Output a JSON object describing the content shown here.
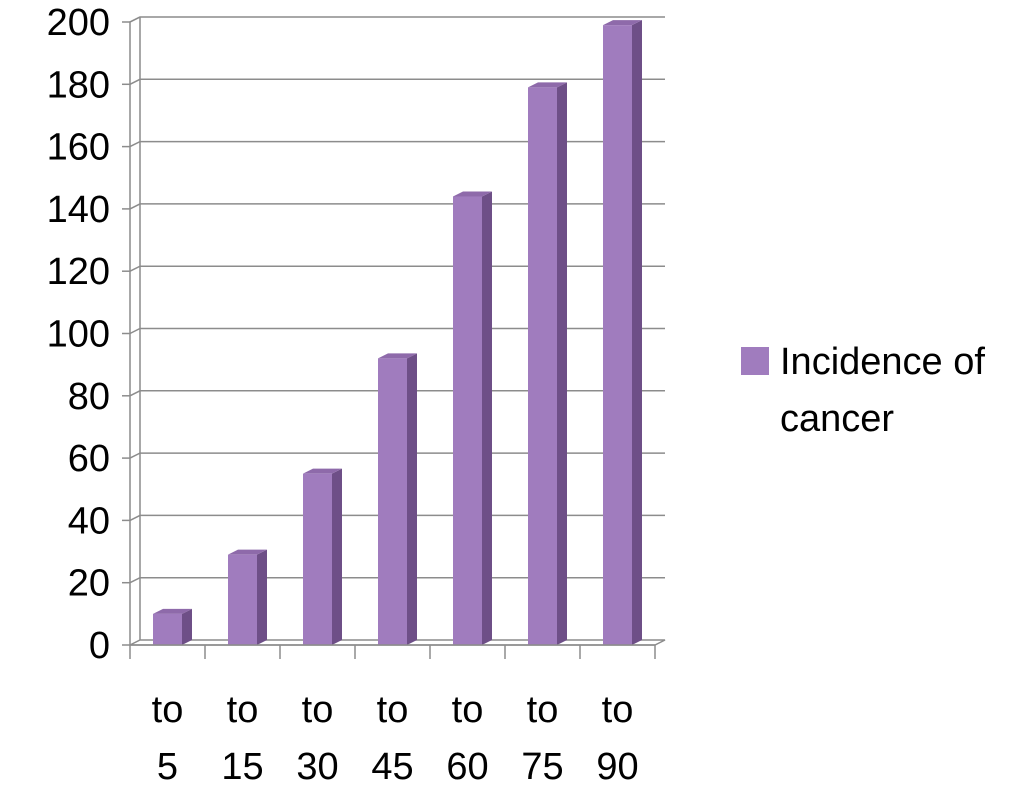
{
  "chart_data": {
    "type": "bar",
    "style": "3d-column",
    "categories": [
      [
        "to",
        "5"
      ],
      [
        "to",
        "15"
      ],
      [
        "to",
        "30"
      ],
      [
        "to",
        "45"
      ],
      [
        "to",
        "60"
      ],
      [
        "to",
        "75"
      ],
      [
        "to",
        "90"
      ]
    ],
    "series": [
      {
        "name": "Incidence of cancer",
        "name_lines": [
          "Incidence of",
          "cancer"
        ],
        "values": [
          10,
          29,
          55,
          92,
          144,
          179,
          199
        ],
        "color": "#A07CBE"
      }
    ],
    "ylim": [
      0,
      200
    ],
    "yticks": [
      "0",
      "20",
      "40",
      "60",
      "80",
      "100",
      "120",
      "140",
      "160",
      "180",
      "200"
    ],
    "grid": true,
    "legend_position": "right"
  }
}
